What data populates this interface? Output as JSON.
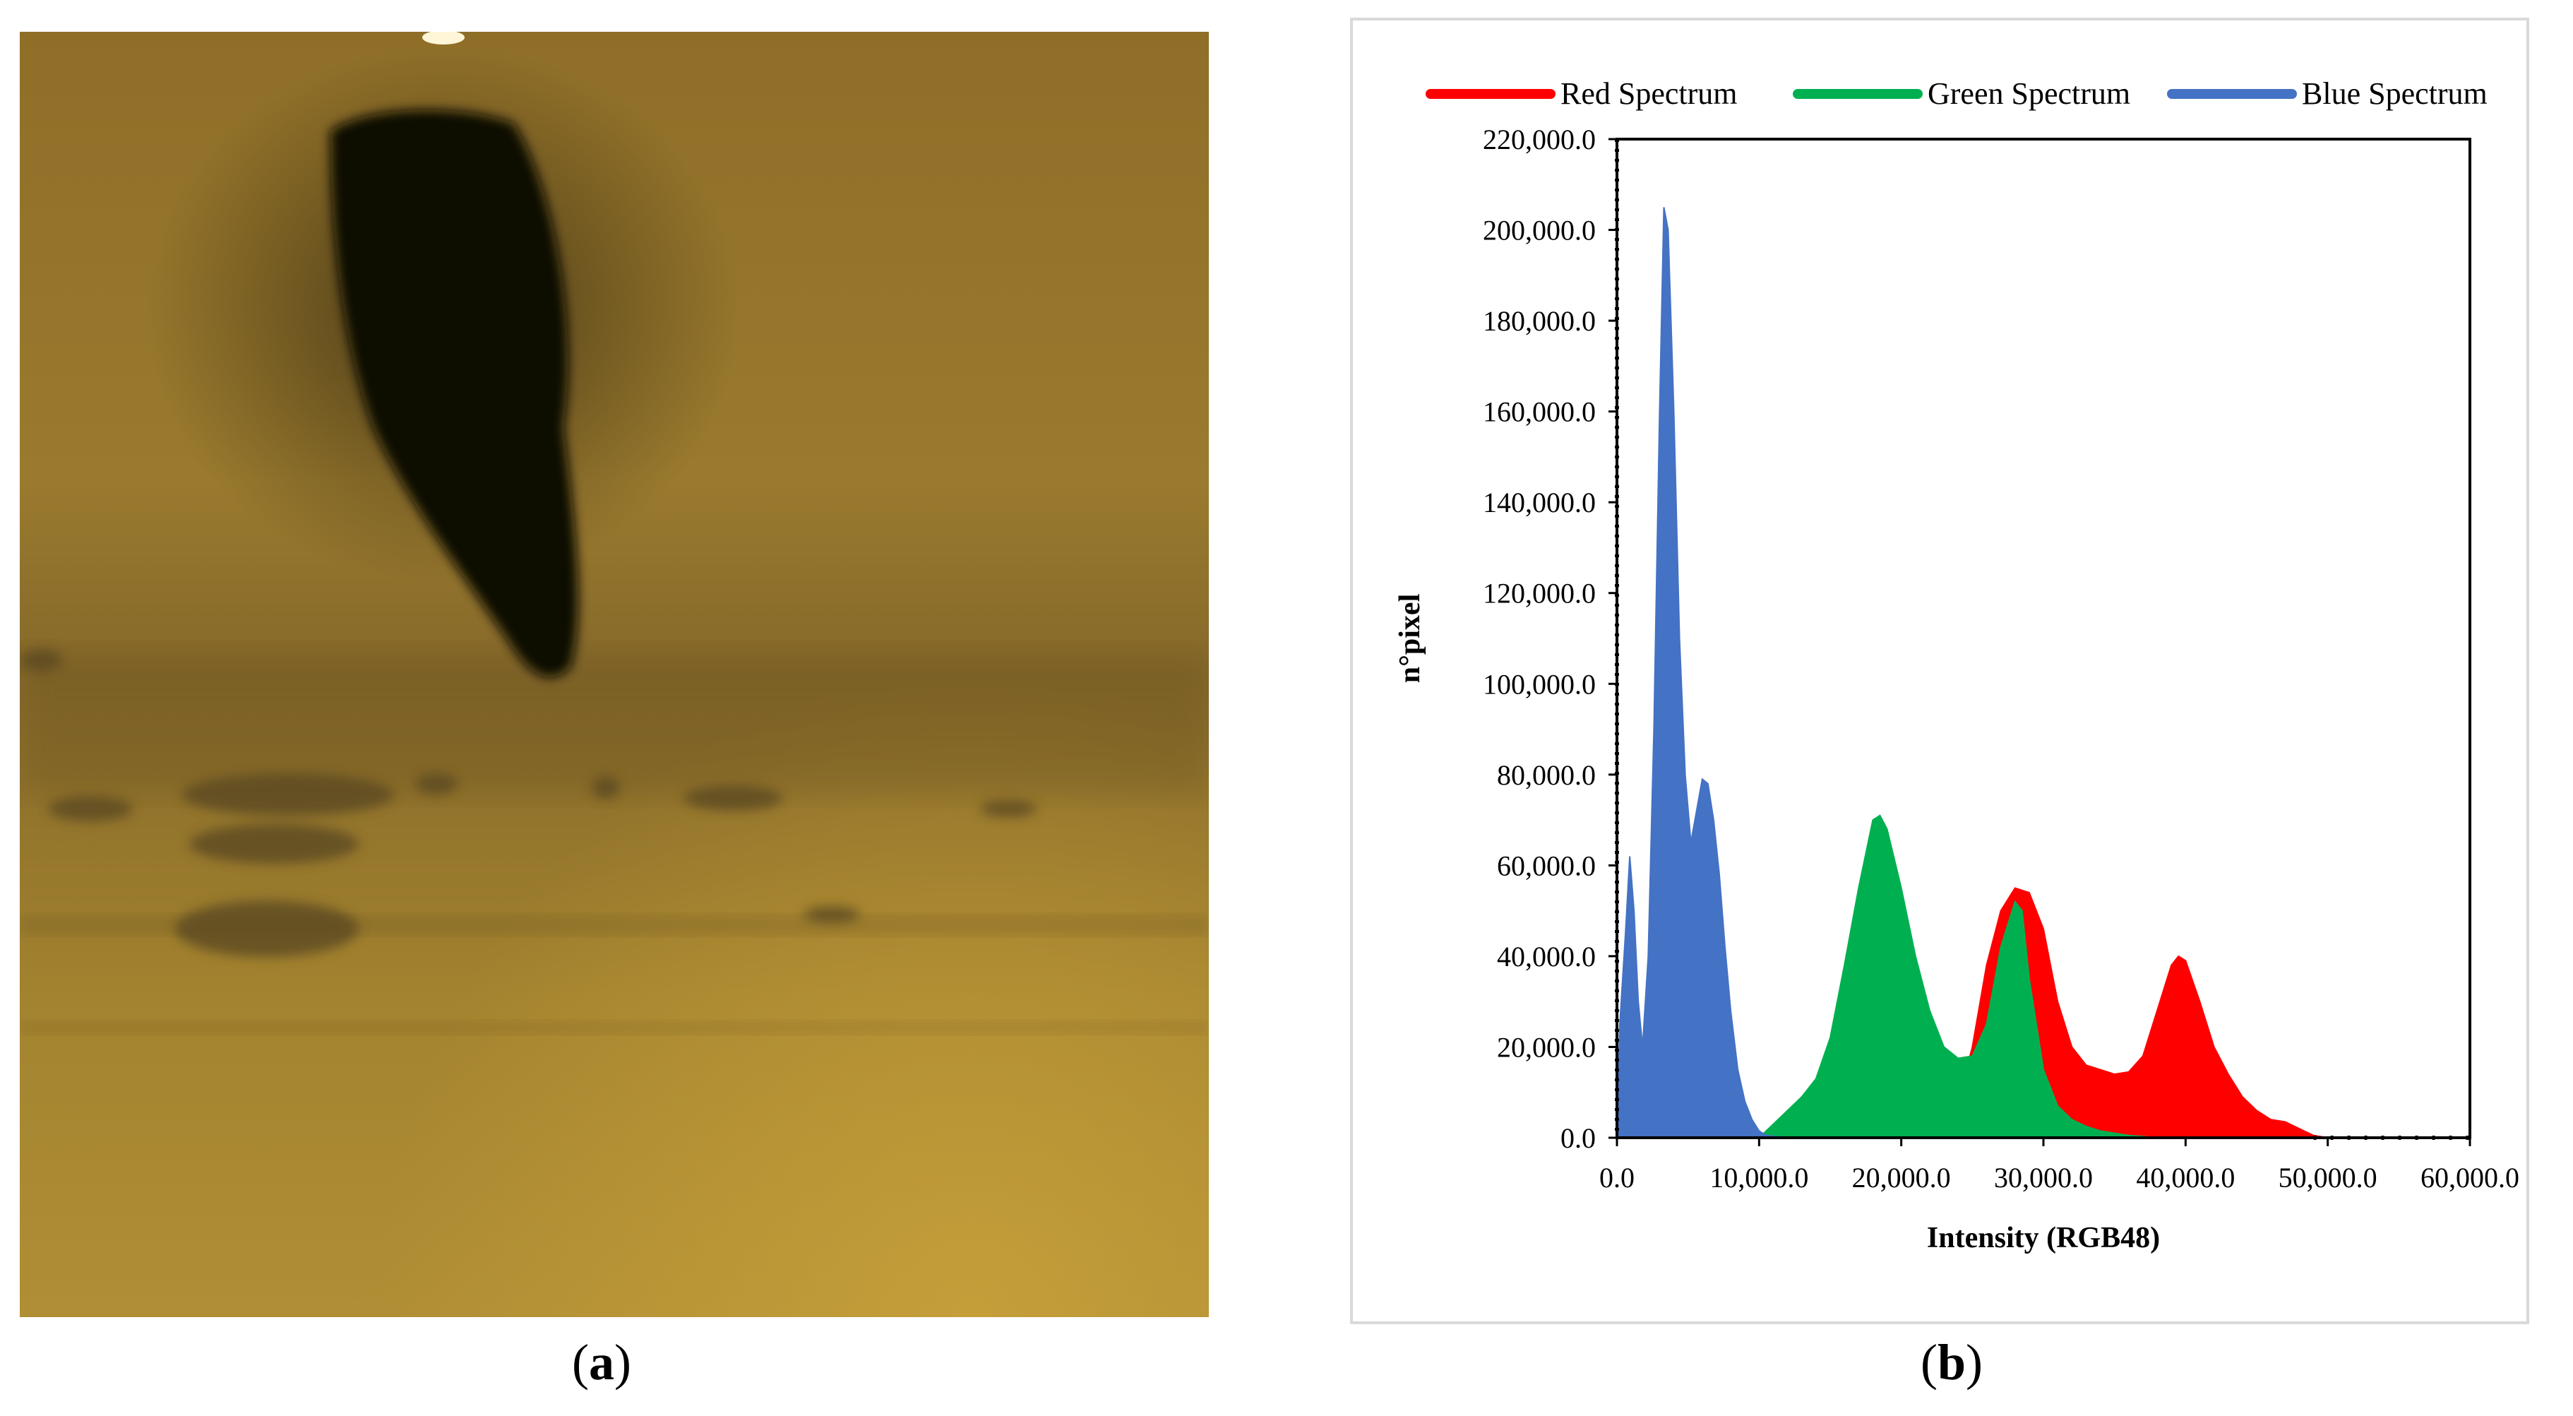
{
  "panels": {
    "a": {
      "caption_open": "(",
      "caption_letter": "a",
      "caption_close": ")"
    },
    "b": {
      "caption_open": "(",
      "caption_letter": "b",
      "caption_close": ")"
    }
  },
  "colors": {
    "red": "#ff0000",
    "green": "#00b050",
    "blue": "#4472c4",
    "photo_base": "#a58530"
  },
  "chart_data": {
    "type": "area",
    "title": "",
    "xlabel": "Intensity (RGB48)",
    "ylabel": "n°pixel",
    "xlim": [
      0,
      60000
    ],
    "ylim": [
      0,
      220000
    ],
    "x_ticks": [
      0,
      10000,
      20000,
      30000,
      40000,
      50000,
      60000
    ],
    "x_tick_labels": [
      "0.0",
      "10,000.0",
      "20,000.0",
      "30,000.0",
      "40,000.0",
      "50,000.0",
      "60,000.0"
    ],
    "y_ticks": [
      0,
      20000,
      40000,
      60000,
      80000,
      100000,
      120000,
      140000,
      160000,
      180000,
      200000,
      220000
    ],
    "y_tick_labels": [
      "0.0",
      "20,000.0",
      "40,000.0",
      "60,000.0",
      "80,000.0",
      "100,000.0",
      "120,000.0",
      "140,000.0",
      "160,000.0",
      "180,000.0",
      "200,000.0",
      "220,000.0"
    ],
    "legend_position": "top",
    "series": [
      {
        "name": "Red Spectrum",
        "color": "#ff0000",
        "points": [
          [
            22000,
            0
          ],
          [
            24000,
            8000
          ],
          [
            25000,
            20000
          ],
          [
            26000,
            38000
          ],
          [
            27000,
            50000
          ],
          [
            28000,
            55000
          ],
          [
            29000,
            54000
          ],
          [
            30000,
            46000
          ],
          [
            31000,
            30000
          ],
          [
            32000,
            20000
          ],
          [
            33000,
            16000
          ],
          [
            34000,
            15000
          ],
          [
            35000,
            14000
          ],
          [
            36000,
            14500
          ],
          [
            37000,
            18000
          ],
          [
            38000,
            28000
          ],
          [
            39000,
            38000
          ],
          [
            39500,
            40000
          ],
          [
            40000,
            39000
          ],
          [
            41000,
            30000
          ],
          [
            42000,
            20000
          ],
          [
            43000,
            14000
          ],
          [
            44000,
            9000
          ],
          [
            45000,
            6000
          ],
          [
            46000,
            4000
          ],
          [
            47000,
            3500
          ],
          [
            48000,
            2000
          ],
          [
            49000,
            500
          ],
          [
            50000,
            0
          ]
        ]
      },
      {
        "name": "Green Spectrum",
        "color": "#00b050",
        "points": [
          [
            10000,
            0
          ],
          [
            11000,
            3000
          ],
          [
            12000,
            6000
          ],
          [
            13000,
            9000
          ],
          [
            14000,
            13000
          ],
          [
            15000,
            22000
          ],
          [
            16000,
            38000
          ],
          [
            17000,
            55000
          ],
          [
            18000,
            70000
          ],
          [
            18500,
            71000
          ],
          [
            19000,
            68000
          ],
          [
            20000,
            55000
          ],
          [
            21000,
            40000
          ],
          [
            22000,
            28000
          ],
          [
            23000,
            20000
          ],
          [
            24000,
            17500
          ],
          [
            25000,
            18000
          ],
          [
            26000,
            25000
          ],
          [
            27000,
            42000
          ],
          [
            28000,
            52000
          ],
          [
            28500,
            50000
          ],
          [
            29000,
            35000
          ],
          [
            30000,
            15000
          ],
          [
            31000,
            7000
          ],
          [
            32000,
            4000
          ],
          [
            33000,
            2500
          ],
          [
            34000,
            1500
          ],
          [
            36000,
            500
          ],
          [
            38000,
            0
          ]
        ]
      },
      {
        "name": "Blue Spectrum",
        "color": "#4472c4",
        "points": [
          [
            0,
            0
          ],
          [
            200,
            25000
          ],
          [
            600,
            45000
          ],
          [
            900,
            62000
          ],
          [
            1200,
            50000
          ],
          [
            1500,
            30000
          ],
          [
            1800,
            20000
          ],
          [
            2200,
            40000
          ],
          [
            2600,
            90000
          ],
          [
            3000,
            160000
          ],
          [
            3300,
            205000
          ],
          [
            3600,
            200000
          ],
          [
            4000,
            160000
          ],
          [
            4400,
            110000
          ],
          [
            4800,
            80000
          ],
          [
            5200,
            65000
          ],
          [
            5600,
            72000
          ],
          [
            6000,
            79000
          ],
          [
            6400,
            78000
          ],
          [
            6800,
            70000
          ],
          [
            7200,
            58000
          ],
          [
            7600,
            42000
          ],
          [
            8000,
            28000
          ],
          [
            8500,
            15000
          ],
          [
            9000,
            8000
          ],
          [
            9500,
            4000
          ],
          [
            10000,
            1500
          ],
          [
            10500,
            500
          ],
          [
            12000,
            0
          ]
        ]
      }
    ]
  }
}
